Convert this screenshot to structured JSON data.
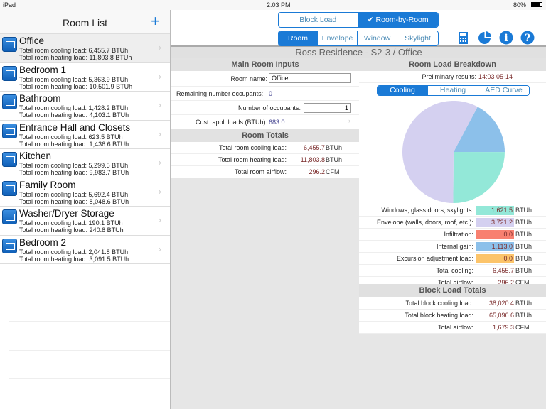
{
  "status": {
    "device": "iPad",
    "time": "2:03 PM",
    "battery": "80%"
  },
  "sidebar": {
    "title": "Room List",
    "add_label": "+",
    "rooms": [
      {
        "name": "Office",
        "cooling": "Total room cooling load: 6,455.7 BTUh",
        "heating": "Total room heating load: 11,803.8 BTUh",
        "selected": true
      },
      {
        "name": "Bedroom 1",
        "cooling": "Total room cooling load: 5,363.9 BTUh",
        "heating": "Total room heating load: 10,501.9 BTUh"
      },
      {
        "name": "Bathroom",
        "cooling": "Total room cooling load: 1,428.2 BTUh",
        "heating": "Total room heating load: 4,103.1 BTUh"
      },
      {
        "name": "Entrance Hall and Closets",
        "cooling": "Total room cooling load: 623.5 BTUh",
        "heating": "Total room heating load: 1,436.6 BTUh"
      },
      {
        "name": "Kitchen",
        "cooling": "Total room cooling load: 5,299.5 BTUh",
        "heating": "Total room heating load: 9,983.7 BTUh"
      },
      {
        "name": "Family Room",
        "cooling": "Total room cooling load: 5,692.4 BTUh",
        "heating": "Total room heating load: 8,048.6 BTUh"
      },
      {
        "name": "Washer/Dryer Storage",
        "cooling": "Total room cooling load: 190.1 BTUh",
        "heating": "Total room heating load: 240.8 BTUh"
      },
      {
        "name": "Bedroom 2",
        "cooling": "Total room cooling load: 2,041.8 BTUh",
        "heating": "Total room heating load: 3,091.5 BTUh"
      }
    ]
  },
  "toolbar": {
    "mode_tabs": [
      "Block Load",
      "✔ Room-by-Room"
    ],
    "active_mode": 1,
    "view_tabs": [
      "Room",
      "Envelope",
      "Window",
      "Skylight"
    ],
    "active_view": 0,
    "icons": [
      "calculator-icon",
      "pie-chart-icon",
      "info-icon",
      "help-icon"
    ]
  },
  "page_title": "Ross Residence - S2-3 / Office",
  "inputs": {
    "header": "Main Room Inputs",
    "room_name_label": "Room name:",
    "room_name": "Office",
    "remaining_label": "Remaining number occupants:",
    "remaining": "0",
    "occupants_label": "Number of occupants:",
    "occupants": "1",
    "cust_label": "Cust. appl. loads (BTUh):",
    "cust": "683.0"
  },
  "room_totals": {
    "header": "Room Totals",
    "rows": [
      {
        "label": "Total room cooling load:",
        "value": "6,455.7",
        "unit": "BTUh"
      },
      {
        "label": "Total room heating load:",
        "value": "11,803.8",
        "unit": "BTUh"
      },
      {
        "label": "Total room airflow:",
        "value": "296.2",
        "unit": "CFM"
      }
    ]
  },
  "breakdown": {
    "header": "Room Load Breakdown",
    "prelim_label": "Preliminary results:",
    "prelim": "14:03 05-14",
    "tabs": [
      "Cooling",
      "Heating",
      "AED Curve"
    ],
    "active_tab": 0,
    "rows": [
      {
        "label": "Windows, glass doors, skylights:",
        "value": "1,621.5",
        "num": 1621.5,
        "unit": "BTUh",
        "color": "#93e8d8"
      },
      {
        "label": "Envelope (walls, doors, roof, etc.):",
        "value": "3,721.2",
        "num": 3721.2,
        "unit": "BTUh",
        "color": "#d4d0f0"
      },
      {
        "label": "Infiltration:",
        "value": "0.0",
        "num": 0,
        "unit": "BTUh",
        "color": "#f88070"
      },
      {
        "label": "Internal gain:",
        "value": "1,113.0",
        "num": 1113.0,
        "unit": "BTUh",
        "color": "#8cc0ea"
      },
      {
        "label": "Excursion adjustment load:",
        "value": "0.0",
        "num": 0,
        "unit": "BTUh",
        "color": "#fcc46a"
      }
    ],
    "totals": [
      {
        "label": "Total cooling:",
        "value": "6,455.7",
        "unit": "BTUh"
      },
      {
        "label": "Total airflow:",
        "value": "296.2",
        "unit": "CFM"
      }
    ]
  },
  "block_totals": {
    "header": "Block Load Totals",
    "rows": [
      {
        "label": "Total block cooling load:",
        "value": "38,020.4",
        "unit": "BTUh"
      },
      {
        "label": "Total block heating load:",
        "value": "65,096.6",
        "unit": "BTUh"
      },
      {
        "label": "Total airflow:",
        "value": "1,679.3",
        "unit": "CFM"
      }
    ]
  }
}
